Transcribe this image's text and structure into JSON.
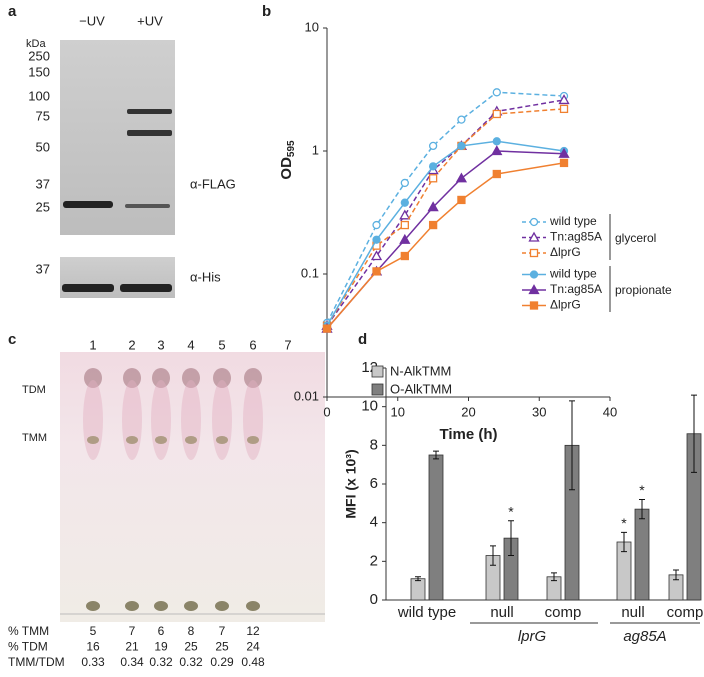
{
  "panel_labels": [
    "a",
    "b",
    "c",
    "d"
  ],
  "blot": {
    "lanes": [
      "−UV",
      "+UV"
    ],
    "unit": "kDa",
    "markers": [
      "250",
      "150",
      "100",
      "75",
      "50",
      "37",
      "25"
    ],
    "lower_markers": [
      "37"
    ],
    "antibodies": [
      "α-FLAG",
      "α-His"
    ]
  },
  "tlc": {
    "lanes": [
      "1",
      "2",
      "3",
      "4",
      "5",
      "6",
      "7"
    ],
    "spots": [
      "TDM",
      "TMM"
    ],
    "rows": [
      [
        "% TMM",
        "5",
        "7",
        "6",
        "8",
        "7",
        "12"
      ],
      [
        "% TDM",
        "16",
        "21",
        "19",
        "25",
        "25",
        "24"
      ],
      [
        "TMM/TDM",
        "0.33",
        "0.34",
        "0.32",
        "0.32",
        "0.29",
        "0.48"
      ]
    ]
  },
  "chart_data": [
    {
      "type": "line",
      "xlabel": "Time (h)",
      "ylabel": "OD",
      "ylabel_sub": "595",
      "log_y": true,
      "xlim": [
        0,
        40
      ],
      "xticks": [
        0,
        10,
        20,
        30,
        40
      ],
      "ylim": [
        0.01,
        10
      ],
      "yticks": [
        0.01,
        0.1,
        1,
        10
      ],
      "x": [
        0,
        7,
        11,
        15,
        19,
        24,
        33.5
      ],
      "series": [
        {
          "name": "wild type",
          "group": "glycerol",
          "color": "#5bb0e0",
          "dashed": true,
          "marker": "circle",
          "filled": false,
          "values": [
            0.04,
            0.25,
            0.55,
            1.1,
            1.8,
            3.0,
            2.8
          ]
        },
        {
          "name": "Tn:ag85A",
          "group": "glycerol",
          "color": "#7030a0",
          "dashed": true,
          "marker": "triangle",
          "filled": false,
          "values": [
            0.038,
            0.14,
            0.3,
            0.7,
            1.1,
            2.1,
            2.6
          ]
        },
        {
          "name": "ΔlprG",
          "group": "glycerol",
          "color": "#f08030",
          "dashed": true,
          "marker": "square",
          "filled": false,
          "values": [
            0.038,
            0.17,
            0.25,
            0.6,
            1.1,
            2.0,
            2.2
          ]
        },
        {
          "name": "wild type",
          "group": "propionate",
          "color": "#5bb0e0",
          "dashed": false,
          "marker": "circle",
          "filled": true,
          "values": [
            0.038,
            0.19,
            0.38,
            0.75,
            1.1,
            1.2,
            1.0
          ]
        },
        {
          "name": "Tn:ag85A",
          "group": "propionate",
          "color": "#7030a0",
          "dashed": false,
          "marker": "triangle",
          "filled": true,
          "values": [
            0.036,
            0.105,
            0.19,
            0.35,
            0.6,
            1.0,
            0.95
          ]
        },
        {
          "name": "ΔlprG",
          "group": "propionate",
          "color": "#f08030",
          "dashed": false,
          "marker": "square",
          "filled": true,
          "values": [
            0.036,
            0.105,
            0.14,
            0.25,
            0.4,
            0.65,
            0.8
          ]
        }
      ]
    },
    {
      "type": "bar",
      "ylabel": "MFI (x 10³)",
      "ylim": [
        0,
        12
      ],
      "yticks": [
        0,
        2,
        4,
        6,
        8,
        10,
        12
      ],
      "categories": [
        "wild type",
        "null",
        "comp",
        "null",
        "comp"
      ],
      "groups": [
        "lprG",
        "ag85A"
      ],
      "series": [
        {
          "name": "N-AlkTMM",
          "color": "#c8c8c8",
          "values": [
            1.1,
            2.3,
            1.2,
            3.0,
            1.3
          ],
          "errors": [
            0.1,
            0.5,
            0.2,
            0.5,
            0.25
          ]
        },
        {
          "name": "O-AlkTMM",
          "color": "#7f7f7f",
          "values": [
            7.5,
            3.2,
            8.0,
            4.7,
            8.6
          ],
          "errors": [
            0.2,
            0.9,
            2.3,
            0.5,
            2.0
          ]
        }
      ],
      "annotations": [
        {
          "text": "*",
          "series": 1,
          "category": 1
        },
        {
          "text": "*",
          "series": 0,
          "category": 3
        },
        {
          "text": "*",
          "series": 1,
          "category": 3
        }
      ]
    }
  ]
}
